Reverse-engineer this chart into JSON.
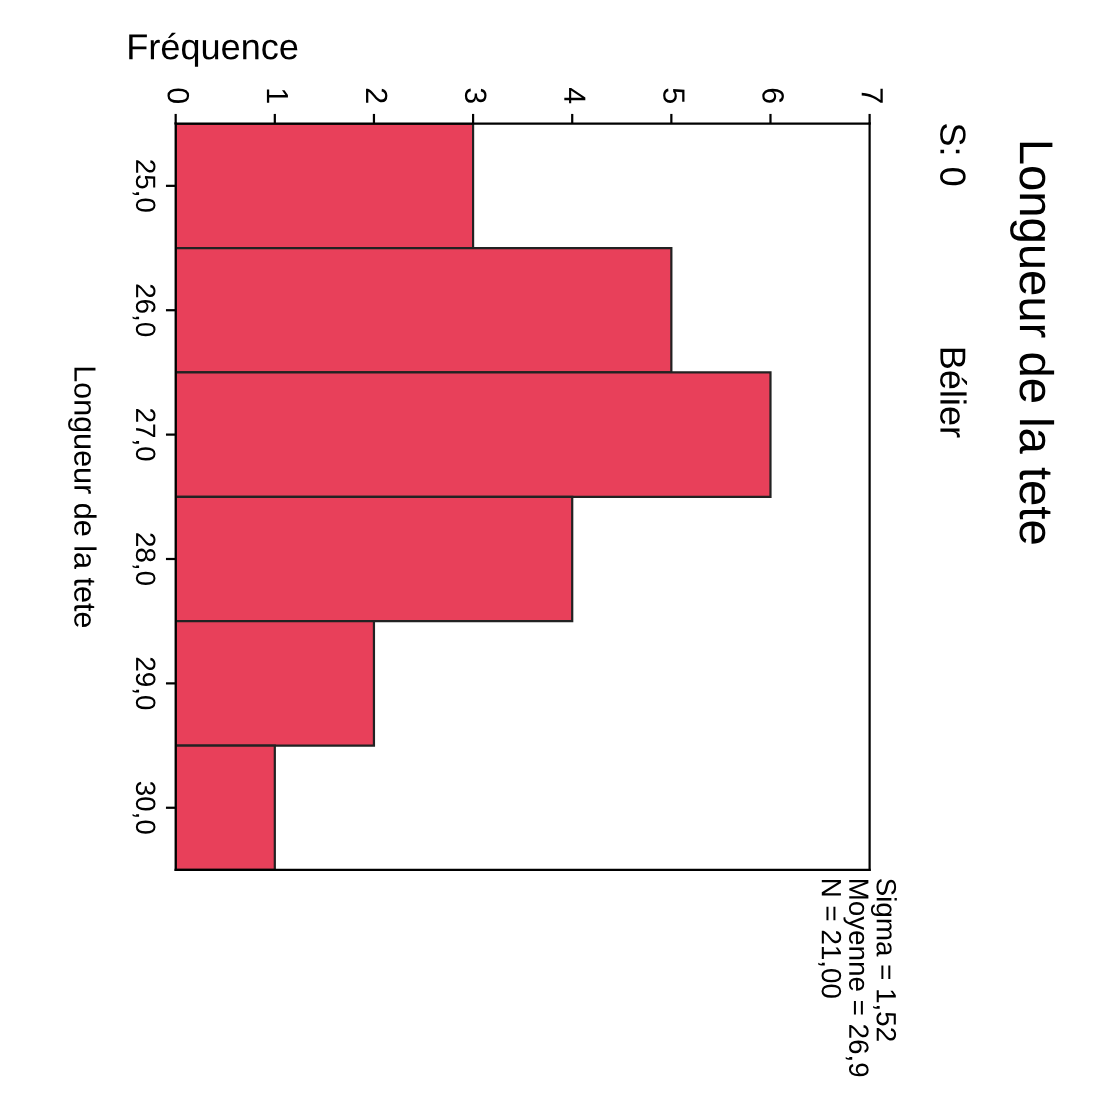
{
  "chart_data": {
    "type": "bar",
    "orientation": "horizontal",
    "title": "Longueur de la tete",
    "subtitle": "S: 0",
    "xlabel": "Fréquence",
    "ylabel": "Longueur de la tete",
    "categories": [
      "25,0",
      "26,0",
      "27,0",
      "28,0",
      "29,0",
      "30,0"
    ],
    "values": [
      3,
      5,
      6,
      4,
      2,
      1
    ],
    "color": "#e8405a",
    "xlim": [
      0,
      7
    ],
    "xticks": [
      0,
      1,
      2,
      3,
      4,
      5,
      6,
      7
    ],
    "grid": false,
    "annotations": [
      "Bélier",
      "Sigma = 1,52",
      "Moyenne = 26,9",
      "N = 21,00"
    ]
  }
}
